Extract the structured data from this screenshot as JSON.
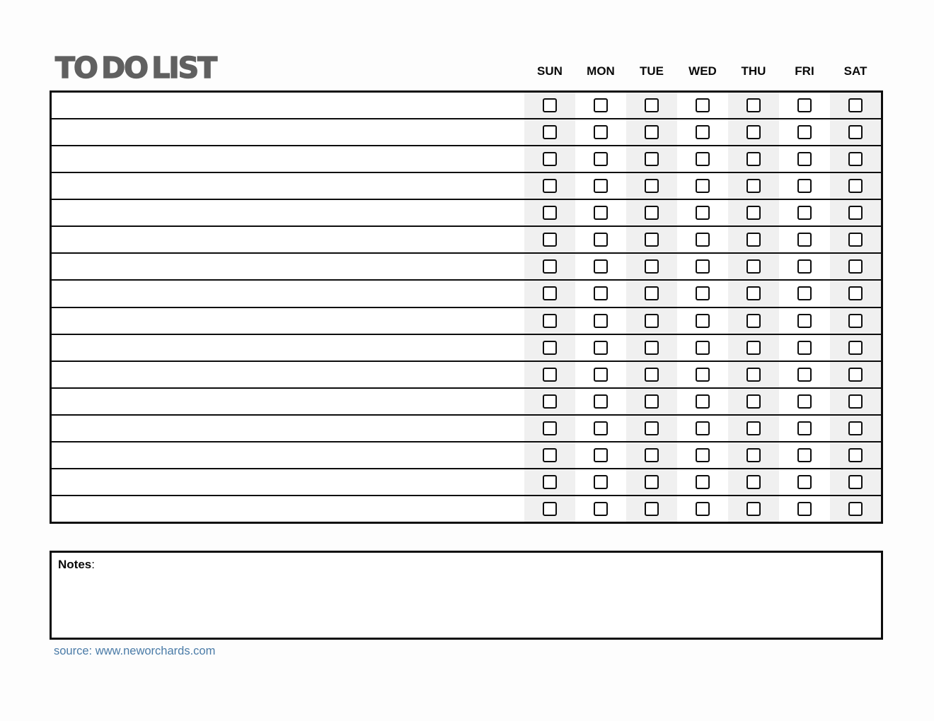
{
  "page": {
    "title": "TO DO LIST"
  },
  "checklist": {
    "days": [
      "SUN",
      "MON",
      "TUE",
      "WED",
      "THU",
      "FRI",
      "SAT"
    ],
    "rows": [
      {
        "task": "",
        "checks": [
          false,
          false,
          false,
          false,
          false,
          false,
          false
        ]
      },
      {
        "task": "",
        "checks": [
          false,
          false,
          false,
          false,
          false,
          false,
          false
        ]
      },
      {
        "task": "",
        "checks": [
          false,
          false,
          false,
          false,
          false,
          false,
          false
        ]
      },
      {
        "task": "",
        "checks": [
          false,
          false,
          false,
          false,
          false,
          false,
          false
        ]
      },
      {
        "task": "",
        "checks": [
          false,
          false,
          false,
          false,
          false,
          false,
          false
        ]
      },
      {
        "task": "",
        "checks": [
          false,
          false,
          false,
          false,
          false,
          false,
          false
        ]
      },
      {
        "task": "",
        "checks": [
          false,
          false,
          false,
          false,
          false,
          false,
          false
        ]
      },
      {
        "task": "",
        "checks": [
          false,
          false,
          false,
          false,
          false,
          false,
          false
        ]
      },
      {
        "task": "",
        "checks": [
          false,
          false,
          false,
          false,
          false,
          false,
          false
        ]
      },
      {
        "task": "",
        "checks": [
          false,
          false,
          false,
          false,
          false,
          false,
          false
        ]
      },
      {
        "task": "",
        "checks": [
          false,
          false,
          false,
          false,
          false,
          false,
          false
        ]
      },
      {
        "task": "",
        "checks": [
          false,
          false,
          false,
          false,
          false,
          false,
          false
        ]
      },
      {
        "task": "",
        "checks": [
          false,
          false,
          false,
          false,
          false,
          false,
          false
        ]
      },
      {
        "task": "",
        "checks": [
          false,
          false,
          false,
          false,
          false,
          false,
          false
        ]
      },
      {
        "task": "",
        "checks": [
          false,
          false,
          false,
          false,
          false,
          false,
          false
        ]
      },
      {
        "task": "",
        "checks": [
          false,
          false,
          false,
          false,
          false,
          false,
          false
        ]
      }
    ]
  },
  "notes": {
    "label": "Notes",
    "separator": ":",
    "content": ""
  },
  "footer": {
    "source_text": "source: www.neworchards.com"
  },
  "colors": {
    "title_gray": "#606060",
    "column_stripe": "#f0f0f0",
    "line_black": "#0d0d0d",
    "source_blue": "#4a7ba7"
  }
}
